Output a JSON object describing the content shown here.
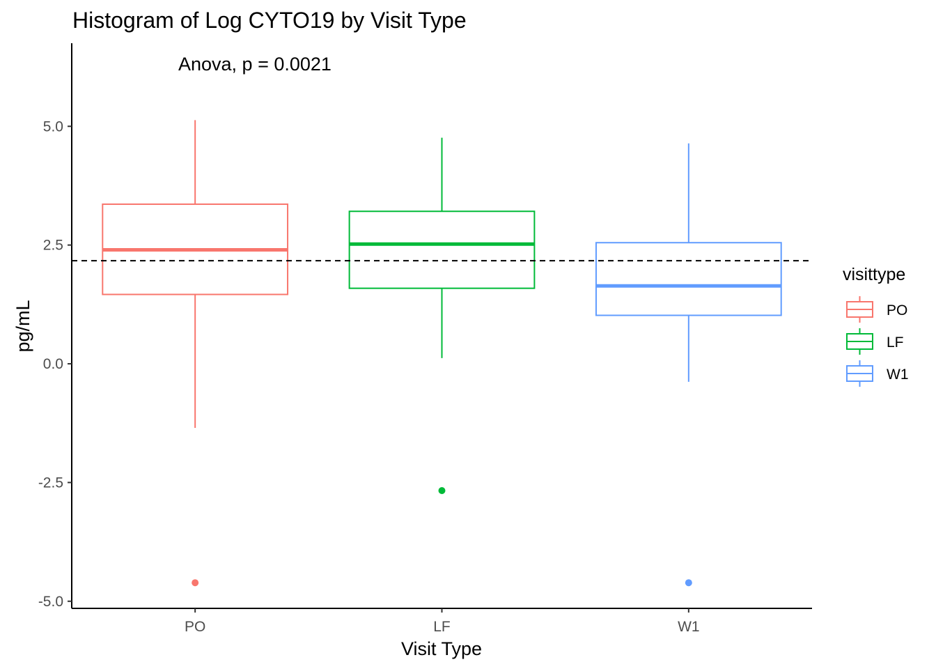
{
  "chart_data": {
    "type": "box",
    "title": "Histogram of Log CYTO19 by Visit Type",
    "xlabel": "Visit Type",
    "ylabel": "pg/mL",
    "annotation": "Anova, p = 0.0021",
    "reference_line": {
      "y": 2.17,
      "style": "dashed",
      "color": "#000000"
    },
    "ylim": [
      -5.15,
      6.75
    ],
    "yticks": [
      -5.0,
      -2.5,
      0.0,
      2.5,
      5.0
    ],
    "ytick_labels": [
      "-5.0",
      "-2.5",
      "0.0",
      "2.5",
      "5.0"
    ],
    "categories": [
      "PO",
      "LF",
      "W1"
    ],
    "grid": false,
    "legend": {
      "title": "visittype",
      "position": "right",
      "entries": [
        "PO",
        "LF",
        "W1"
      ]
    },
    "series": [
      {
        "name": "PO",
        "color": "#F8766D",
        "whisker_low": -1.35,
        "q1": 1.46,
        "median": 2.4,
        "q3": 3.36,
        "whisker_high": 5.13,
        "outliers": [
          -4.61
        ]
      },
      {
        "name": "LF",
        "color": "#00BA38",
        "whisker_low": 0.12,
        "q1": 1.59,
        "median": 2.52,
        "q3": 3.21,
        "whisker_high": 4.76,
        "outliers": [
          -2.67
        ]
      },
      {
        "name": "W1",
        "color": "#619CFF",
        "whisker_low": -0.38,
        "q1": 1.02,
        "median": 1.64,
        "q3": 2.55,
        "whisker_high": 4.64,
        "outliers": [
          -4.61
        ]
      }
    ]
  }
}
